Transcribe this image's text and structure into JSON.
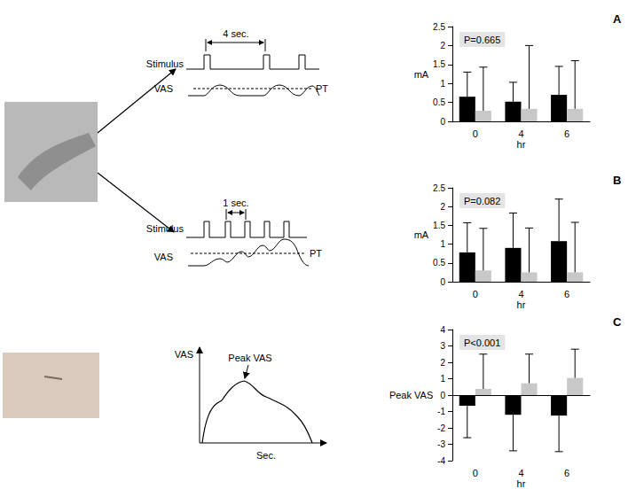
{
  "chart_data": [
    {
      "type": "bar",
      "title": "A",
      "annotations": [
        "P=0.665"
      ],
      "x_label": "hr",
      "y_label": "mA",
      "categories": [
        "0",
        "4",
        "6"
      ],
      "series": [
        {
          "color": "#000000",
          "values": [
            0.65,
            0.52,
            0.7
          ],
          "errors": [
            0.65,
            0.51,
            0.75
          ]
        },
        {
          "color": "#c8c8c8",
          "values": [
            0.28,
            0.33,
            0.33
          ],
          "errors": [
            1.15,
            1.67,
            1.27
          ]
        }
      ],
      "ylim": [
        0,
        2.5
      ],
      "yticks": [
        0,
        0.5,
        1,
        1.5,
        2,
        2.5
      ],
      "grid": false
    },
    {
      "type": "bar",
      "title": "B",
      "annotations": [
        "P=0.082"
      ],
      "x_label": "hr",
      "y_label": "mA",
      "categories": [
        "0",
        "4",
        "6"
      ],
      "series": [
        {
          "color": "#000000",
          "values": [
            0.78,
            0.9,
            1.08
          ],
          "errors": [
            0.79,
            0.93,
            1.12
          ]
        },
        {
          "color": "#c8c8c8",
          "values": [
            0.3,
            0.25,
            0.25
          ],
          "errors": [
            1.12,
            1.18,
            1.33
          ]
        }
      ],
      "ylim": [
        0,
        2.5
      ],
      "yticks": [
        0,
        0.5,
        1,
        1.5,
        2,
        2.5
      ],
      "grid": false
    },
    {
      "type": "bar",
      "title": "C",
      "annotations": [
        "P<0.001"
      ],
      "x_label": "hr",
      "y_label": "Peak VAS",
      "categories": [
        "0",
        "4",
        "6"
      ],
      "series": [
        {
          "color": "#000000",
          "values": [
            -0.65,
            -1.2,
            -1.25
          ],
          "errors": [
            1.95,
            2.2,
            2.2
          ]
        },
        {
          "color": "#c8c8c8",
          "values": [
            0.38,
            0.72,
            1.05
          ],
          "errors": [
            2.12,
            1.78,
            1.75
          ]
        }
      ],
      "ylim": [
        -4,
        4
      ],
      "yticks": [
        -4,
        -3,
        -2,
        -1,
        0,
        1,
        2,
        3,
        4
      ],
      "grid": false
    }
  ],
  "diagram": {
    "stimulus_train_slow": {
      "signal_label": "Stimulus",
      "interval_label": "4 sec.",
      "response_label": "VAS",
      "threshold_label": "PT"
    },
    "stimulus_train_fast": {
      "signal_label": "Stimulus",
      "interval_label": "1 sec.",
      "response_label": "VAS",
      "threshold_label": "PT"
    },
    "response_curve": {
      "y_label": "VAS",
      "x_label": "Sec.",
      "peak_label": "Peak VAS"
    }
  }
}
